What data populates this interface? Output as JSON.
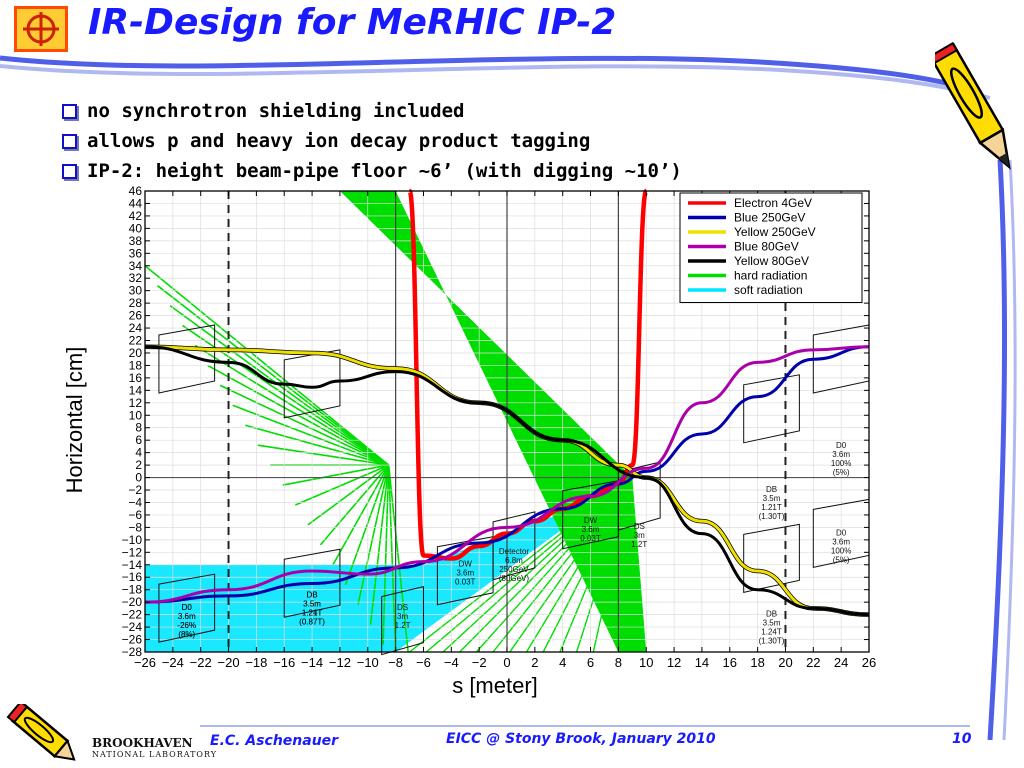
{
  "slide": {
    "title": "IR-Design for MeRHIC IP-2",
    "bullets": [
      "no synchrotron shielding included",
      "allows p and heavy ion decay product tagging",
      "IP-2: height beam-pipe floor ~6’ (with digging ~10’)"
    ],
    "accent_color": "#1a1aff"
  },
  "footer": {
    "institution_name": "BROOKHAVEN",
    "institution_sub": "NATIONAL LABORATORY",
    "author": "E.C. Aschenauer",
    "event": "EICC @ Stony Brook, January 2010",
    "page_number": "10"
  },
  "chart_data": {
    "type": "line",
    "xlabel": "s [meter]",
    "ylabel": "Horizontal [cm]",
    "xlim": [
      -26,
      26
    ],
    "ylim": [
      -28,
      46
    ],
    "xticks": [
      -26,
      -24,
      -22,
      -20,
      -18,
      -16,
      -14,
      -12,
      -10,
      -8,
      -6,
      -4,
      -2,
      0,
      2,
      4,
      6,
      8,
      10,
      12,
      14,
      16,
      18,
      20,
      22,
      24,
      26
    ],
    "yticks": [
      -28,
      -26,
      -24,
      -22,
      -20,
      -18,
      -16,
      -14,
      -12,
      -10,
      -8,
      -6,
      -4,
      -2,
      0,
      2,
      4,
      6,
      8,
      10,
      12,
      14,
      16,
      18,
      20,
      22,
      24,
      26,
      28,
      30,
      32,
      34,
      36,
      38,
      40,
      42,
      44,
      46
    ],
    "legend_position": "top-right",
    "series": [
      {
        "name": "Electron  4GeV",
        "color": "#ff0000",
        "x": [
          -7,
          -6,
          -4,
          -2,
          0,
          2,
          4,
          6,
          8,
          9,
          10
        ],
        "y": [
          46,
          -12.5,
          -13,
          -11,
          -9,
          -7,
          -5,
          -3,
          -1,
          2,
          46
        ]
      },
      {
        "name": "Blue    250GeV",
        "color": "#0000aa",
        "x": [
          -26,
          -20,
          -14,
          -8,
          -2,
          4,
          8,
          10,
          14,
          18,
          22,
          26
        ],
        "y": [
          -20,
          -19,
          -17,
          -14.5,
          -10.5,
          -5,
          -1,
          1,
          7,
          13,
          19,
          21
        ]
      },
      {
        "name": "Yellow 250GeV",
        "color": "#f0e000",
        "x": [
          -26,
          -20,
          -14,
          -8,
          -2,
          4,
          8,
          10,
          14,
          18,
          22,
          26
        ],
        "y": [
          21,
          20.5,
          20,
          17.5,
          12,
          6,
          2,
          0,
          -7,
          -15,
          -21,
          -22
        ]
      },
      {
        "name": "Blue     80GeV",
        "color": "#aa00aa",
        "x": [
          -26,
          -20,
          -14,
          -10,
          -6,
          0,
          6,
          10,
          14,
          18,
          22,
          26
        ],
        "y": [
          -20,
          -18,
          -15,
          -15.5,
          -13.5,
          -8,
          -3,
          1.5,
          12,
          18.5,
          20.5,
          21
        ]
      },
      {
        "name": "Yellow 80GeV",
        "color": "#000000",
        "x": [
          -26,
          -20,
          -16,
          -14,
          -12,
          -8,
          -2,
          4,
          10,
          14,
          18,
          22,
          26
        ],
        "y": [
          21,
          18.5,
          15,
          14.5,
          15.5,
          17,
          12,
          6,
          0,
          -9,
          -18,
          -21,
          -22
        ]
      },
      {
        "name": "hard radiation",
        "color": "#00dd00"
      },
      {
        "name": "soft radiation",
        "color": "#00e5ff"
      }
    ],
    "vertical_lines": {
      "solid": [
        -8,
        0,
        8
      ],
      "dashed": [
        -20,
        20
      ]
    },
    "magnets": [
      {
        "label": [
          "D0",
          "3.6m",
          "-26%",
          "(8%)"
        ],
        "x": [
          -25,
          -21
        ],
        "y": [
          20,
          -20
        ]
      },
      {
        "label": [
          "DB",
          "3.5m",
          "1.24T",
          "(0.87T)"
        ],
        "x": [
          -16,
          -12
        ],
        "y": [
          16,
          -18
        ]
      },
      {
        "label": [
          "DB",
          "3.5m",
          "1.21T",
          "(0.87T)"
        ],
        "x": [
          -16,
          -12
        ],
        "y": [
          -16,
          -18
        ]
      },
      {
        "label": [
          "D0",
          "3.6m",
          "-26%",
          "(8%)"
        ],
        "x": [
          -25,
          -21
        ],
        "y": [
          -20,
          -20
        ]
      },
      {
        "label": [
          "DS",
          "3m",
          "1.2T"
        ],
        "x": [
          -9,
          -6
        ],
        "y": [
          -22,
          -20
        ]
      },
      {
        "label": [
          "DW",
          "3.6m",
          "0.03T"
        ],
        "x": [
          -5,
          -1
        ],
        "y": [
          -14,
          -13
        ]
      },
      {
        "label": [
          "Detector",
          "6.8m",
          "250GeV",
          "(80GeV)"
        ],
        "x": [
          -1,
          2
        ],
        "y": [
          -10,
          -11
        ]
      },
      {
        "label": [
          "DW",
          "3.6m",
          "0.03T"
        ],
        "x": [
          4,
          8
        ],
        "y": [
          -5,
          -6
        ]
      },
      {
        "label": [
          "DS",
          "3m",
          "1.2T"
        ],
        "x": [
          8,
          11
        ],
        "y": [
          -2,
          -7
        ]
      },
      {
        "label": [
          "DB",
          "3.5m",
          "1.21T",
          "(1.30T)"
        ],
        "x": [
          17,
          21
        ],
        "y": [
          12,
          -1
        ]
      },
      {
        "label": [
          "D0",
          "3.6m",
          "100%",
          "(5%)"
        ],
        "x": [
          22,
          26
        ],
        "y": [
          20,
          6
        ]
      },
      {
        "label": [
          "D0",
          "3.6m",
          "100%",
          "(5%)"
        ],
        "x": [
          22,
          26
        ],
        "y": [
          -8,
          -8
        ]
      },
      {
        "label": [
          "DB",
          "3.5m",
          "1.24T",
          "(1.30T)"
        ],
        "x": [
          17,
          21
        ],
        "y": [
          -12,
          -21
        ]
      }
    ]
  }
}
